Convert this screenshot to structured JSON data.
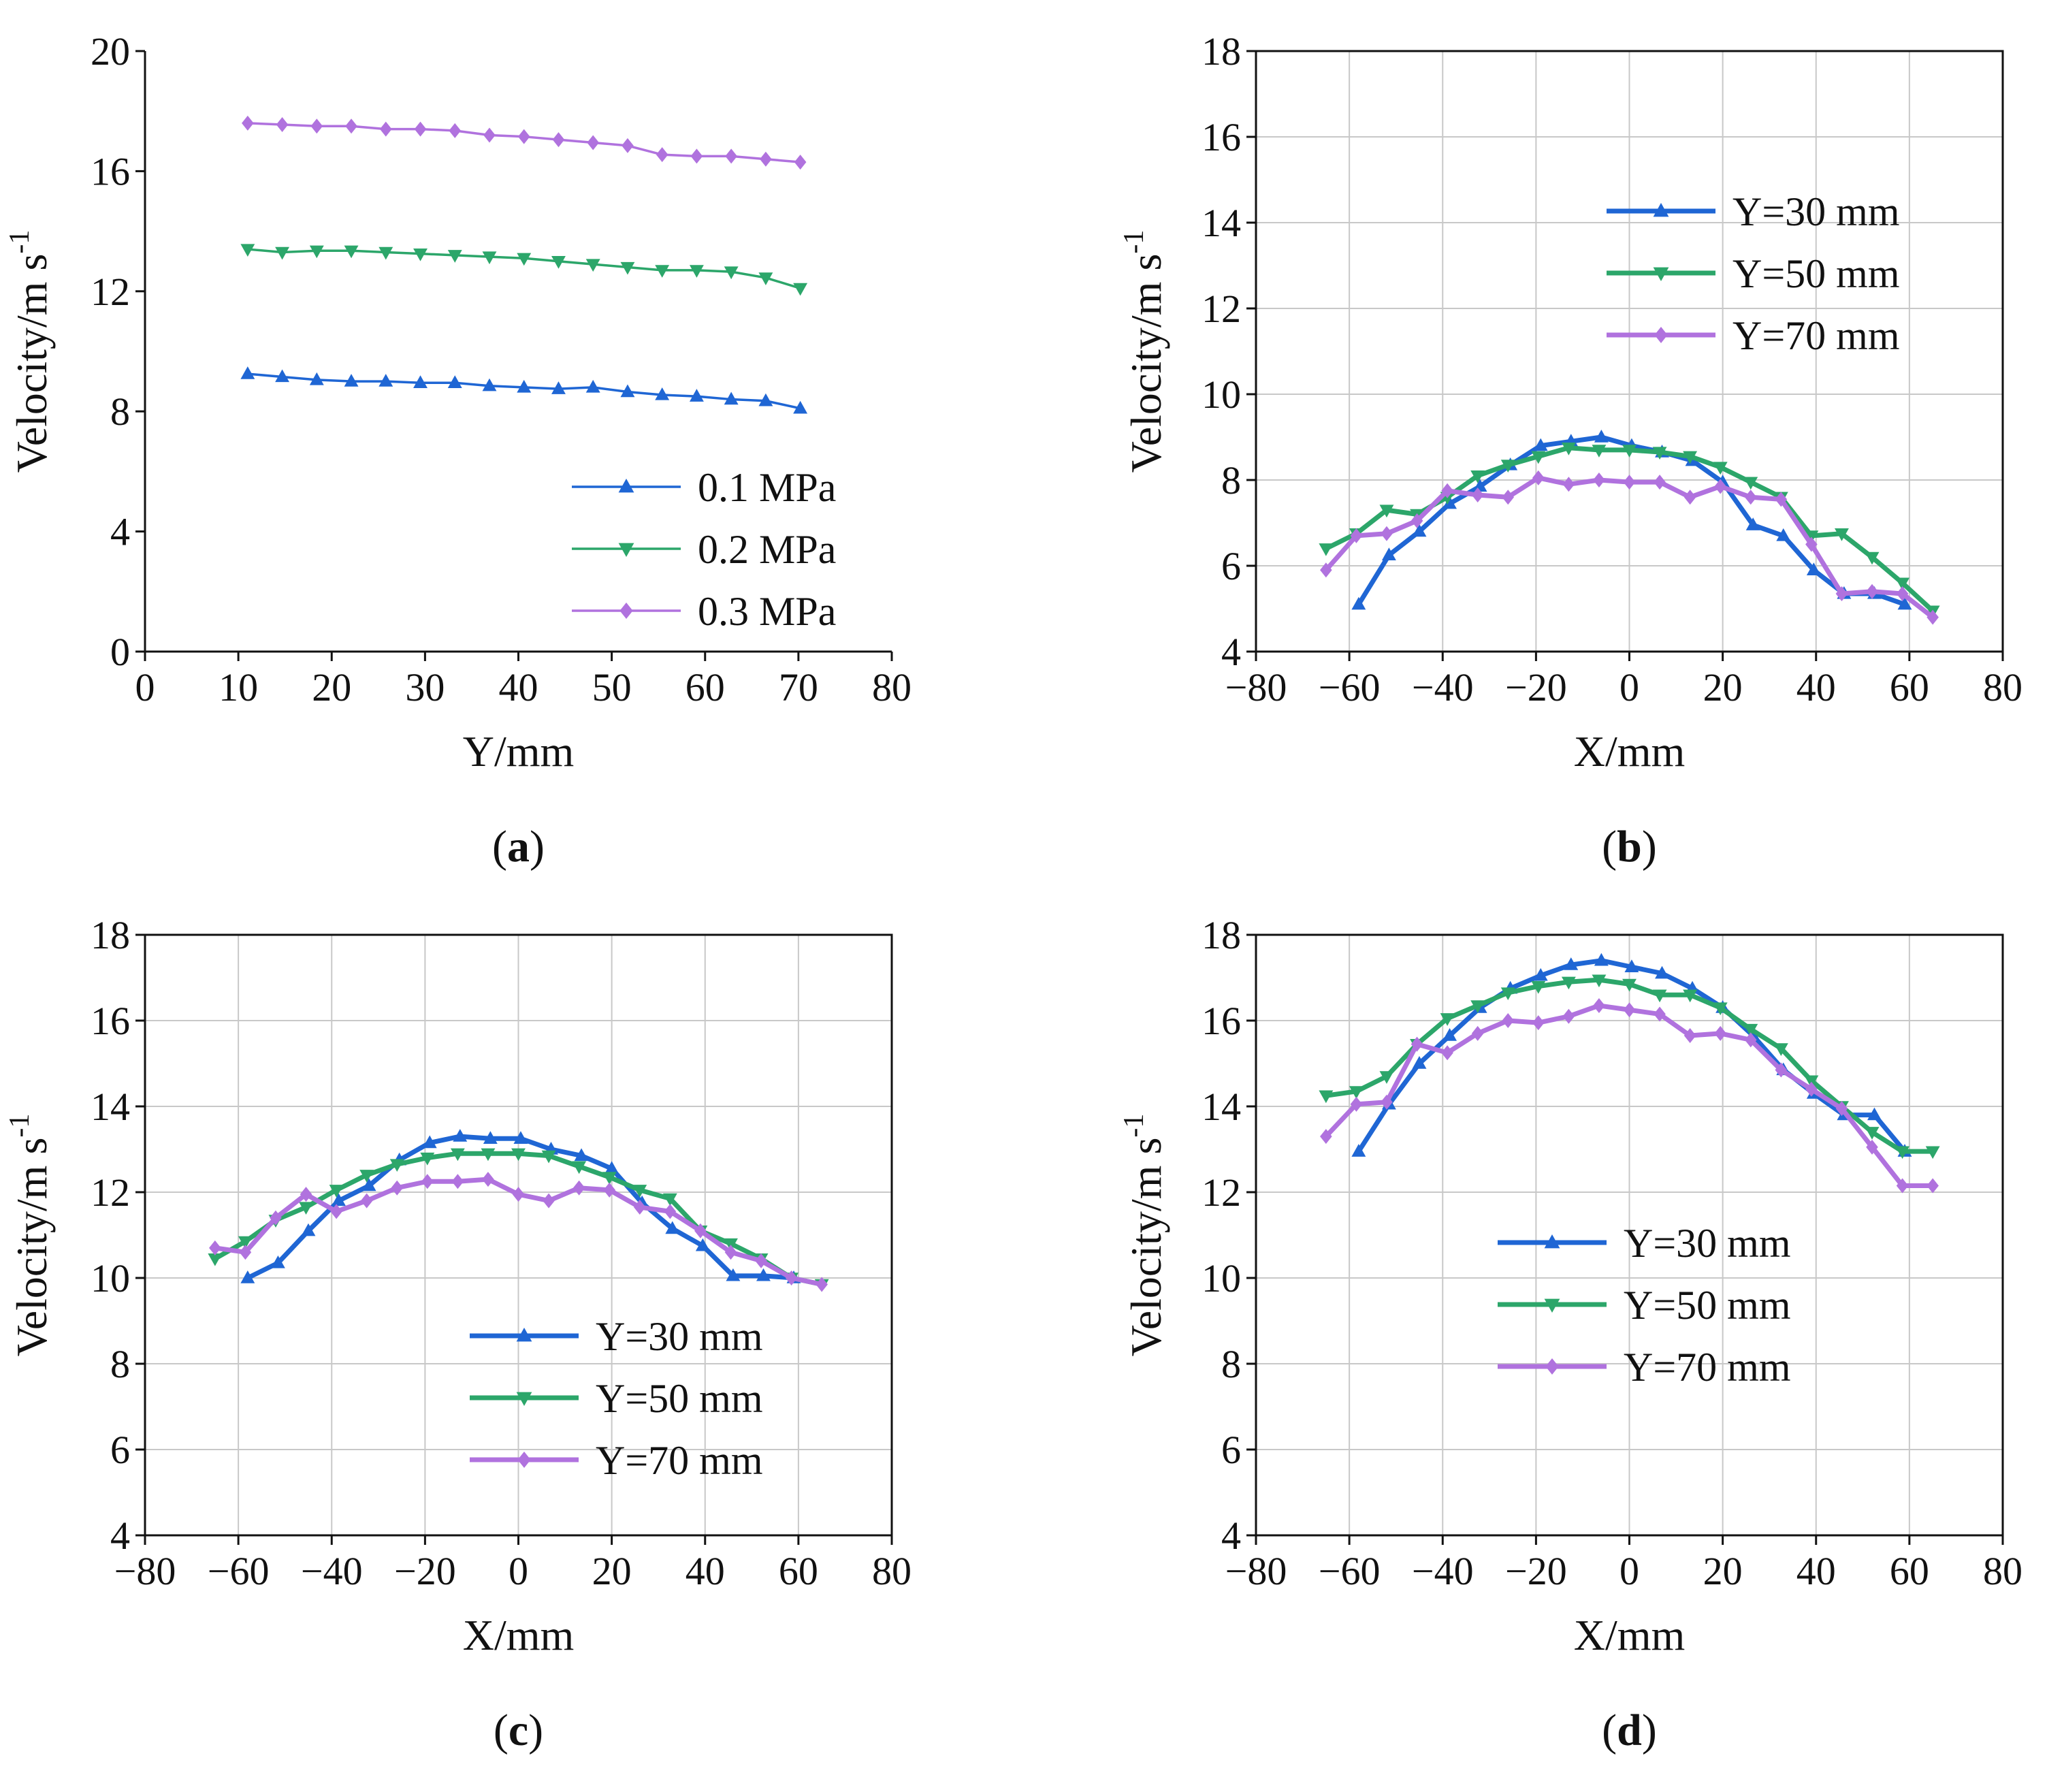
{
  "chart_data": [
    {
      "panel": "a",
      "type": "line",
      "xlabel": "Y/mm",
      "ylabel_main": "Velocity/m s",
      "ylabel_sup": "-1",
      "xlim": [
        0,
        80
      ],
      "ylim": [
        0,
        20
      ],
      "xticks": [
        0,
        10,
        20,
        30,
        40,
        50,
        60,
        70,
        80
      ],
      "yticks": [
        0,
        4,
        8,
        12,
        16,
        20
      ],
      "grid": false,
      "legend_position": "bottom-right",
      "x": [
        11,
        14.7,
        18.4,
        22.1,
        25.8,
        29.5,
        33.2,
        36.9,
        40.6,
        44.3,
        48,
        51.7,
        55.4,
        59.1,
        62.8,
        66.5,
        70.2
      ],
      "series": [
        {
          "name": "0.1 MPa",
          "marker": "triangle-up",
          "color": "#1f66d4",
          "values": [
            9.25,
            9.15,
            9.05,
            9.0,
            9.0,
            8.95,
            8.95,
            8.85,
            8.8,
            8.75,
            8.8,
            8.65,
            8.55,
            8.5,
            8.4,
            8.35,
            8.1
          ]
        },
        {
          "name": "0.2 MPa",
          "marker": "triangle-down",
          "color": "#2ca66a",
          "values": [
            13.4,
            13.3,
            13.35,
            13.35,
            13.3,
            13.25,
            13.2,
            13.15,
            13.1,
            13.0,
            12.9,
            12.8,
            12.7,
            12.7,
            12.65,
            12.45,
            12.1
          ]
        },
        {
          "name": "0.3 MPa",
          "marker": "diamond",
          "color": "#b072de",
          "values": [
            17.6,
            17.55,
            17.5,
            17.5,
            17.4,
            17.4,
            17.35,
            17.2,
            17.15,
            17.05,
            16.95,
            16.85,
            16.55,
            16.5,
            16.5,
            16.4,
            16.3
          ]
        }
      ],
      "panel_label_text": "a"
    },
    {
      "panel": "b",
      "type": "line",
      "xlabel": "X/mm",
      "ylabel_main": "Velocity/m s",
      "ylabel_sup": "-1",
      "xlim": [
        -80,
        80
      ],
      "ylim": [
        4,
        18
      ],
      "xticks": [
        -80,
        -60,
        -40,
        -20,
        0,
        20,
        40,
        60,
        80
      ],
      "xtick_labels": [
        "−80",
        "−60",
        "−40",
        "−20",
        "0",
        "20",
        "40",
        "60",
        "80"
      ],
      "yticks": [
        4,
        6,
        8,
        10,
        12,
        14,
        16,
        18
      ],
      "grid": true,
      "legend_position": "top-right",
      "series": [
        {
          "name": "Y=30 mm",
          "marker": "triangle-up",
          "color": "#1f66d4",
          "x": [
            -58,
            -51.5,
            -45,
            -38.5,
            -32,
            -25.5,
            -19,
            -12.5,
            -6,
            0.5,
            7,
            13.5,
            20,
            26.5,
            33,
            39.5,
            46,
            52.5,
            59
          ],
          "values": [
            5.1,
            6.25,
            6.8,
            7.45,
            7.85,
            8.35,
            8.8,
            8.9,
            9.0,
            8.8,
            8.65,
            8.45,
            7.95,
            6.95,
            6.7,
            5.9,
            5.35,
            5.35,
            5.1
          ]
        },
        {
          "name": "Y=50 mm",
          "marker": "triangle-down",
          "color": "#2ca66a",
          "x": [
            -65,
            -58.5,
            -52,
            -45.5,
            -39,
            -32.5,
            -26,
            -19.5,
            -13,
            -6.5,
            0,
            6.5,
            13,
            19.5,
            26,
            32.5,
            39,
            45.5,
            52,
            58.5,
            65
          ],
          "values": [
            6.4,
            6.75,
            7.3,
            7.2,
            7.6,
            8.1,
            8.35,
            8.55,
            8.75,
            8.7,
            8.7,
            8.65,
            8.55,
            8.3,
            7.95,
            7.6,
            6.7,
            6.75,
            6.2,
            5.6,
            4.95
          ]
        },
        {
          "name": "Y=70 mm",
          "marker": "diamond",
          "color": "#b072de",
          "x": [
            -65,
            -58.5,
            -52,
            -45.5,
            -39,
            -32.5,
            -26,
            -19.5,
            -13,
            -6.5,
            0,
            6.5,
            13,
            19.5,
            26,
            32.5,
            39,
            45.5,
            52,
            58.5,
            65
          ],
          "values": [
            5.9,
            6.7,
            6.75,
            7.05,
            7.75,
            7.65,
            7.6,
            8.05,
            7.9,
            8.0,
            7.95,
            7.95,
            7.6,
            7.85,
            7.6,
            7.55,
            6.5,
            5.35,
            5.4,
            5.35,
            4.8
          ]
        }
      ],
      "panel_label_text": "b"
    },
    {
      "panel": "c",
      "type": "line",
      "xlabel": "X/mm",
      "ylabel_main": "Velocity/m s",
      "ylabel_sup": "-1",
      "xlim": [
        -80,
        80
      ],
      "ylim": [
        4,
        18
      ],
      "xticks": [
        -80,
        -60,
        -40,
        -20,
        0,
        20,
        40,
        60,
        80
      ],
      "xtick_labels": [
        "−80",
        "−60",
        "−40",
        "−20",
        "0",
        "20",
        "40",
        "60",
        "80"
      ],
      "yticks": [
        4,
        6,
        8,
        10,
        12,
        14,
        16,
        18
      ],
      "grid": true,
      "legend_position": "bottom-right",
      "series": [
        {
          "name": "Y=30 mm",
          "marker": "triangle-up",
          "color": "#1f66d4",
          "x": [
            -58,
            -51.5,
            -45,
            -38.5,
            -32,
            -25.5,
            -19,
            -12.5,
            -6,
            0.5,
            7,
            13.5,
            20,
            26.5,
            33,
            39.5,
            46,
            52.5,
            59
          ],
          "values": [
            10.0,
            10.35,
            11.1,
            11.8,
            12.15,
            12.75,
            13.15,
            13.3,
            13.25,
            13.25,
            13.0,
            12.85,
            12.55,
            11.75,
            11.15,
            10.75,
            10.05,
            10.05,
            10.0
          ]
        },
        {
          "name": "Y=50 mm",
          "marker": "triangle-down",
          "color": "#2ca66a",
          "x": [
            -65,
            -58.5,
            -52,
            -45.5,
            -39,
            -32.5,
            -26,
            -19.5,
            -13,
            -6.5,
            0,
            6.5,
            13,
            19.5,
            26,
            32.5,
            39,
            45.5,
            52,
            58.5,
            65
          ],
          "values": [
            10.45,
            10.85,
            11.35,
            11.65,
            12.05,
            12.4,
            12.65,
            12.8,
            12.9,
            12.9,
            12.9,
            12.85,
            12.6,
            12.35,
            12.05,
            11.85,
            11.1,
            10.8,
            10.45,
            10.0,
            9.85
          ]
        },
        {
          "name": "Y=70 mm",
          "marker": "diamond",
          "color": "#b072de",
          "x": [
            -65,
            -58.5,
            -52,
            -45.5,
            -39,
            -32.5,
            -26,
            -19.5,
            -13,
            -6.5,
            0,
            6.5,
            13,
            19.5,
            26,
            32.5,
            39,
            45.5,
            52,
            58.5,
            65
          ],
          "values": [
            10.7,
            10.6,
            11.4,
            11.95,
            11.55,
            11.8,
            12.1,
            12.25,
            12.25,
            12.3,
            11.95,
            11.8,
            12.1,
            12.05,
            11.65,
            11.55,
            11.1,
            10.6,
            10.4,
            10.0,
            9.85
          ]
        }
      ],
      "panel_label_text": "c"
    },
    {
      "panel": "d",
      "type": "line",
      "xlabel": "X/mm",
      "ylabel_main": "Velocity/m s",
      "ylabel_sup": "-1",
      "xlim": [
        -80,
        80
      ],
      "ylim": [
        4,
        18
      ],
      "xticks": [
        -80,
        -60,
        -40,
        -20,
        0,
        20,
        40,
        60,
        80
      ],
      "xtick_labels": [
        "−80",
        "−60",
        "−40",
        "−20",
        "0",
        "20",
        "40",
        "60",
        "80"
      ],
      "yticks": [
        4,
        6,
        8,
        10,
        12,
        14,
        16,
        18
      ],
      "grid": true,
      "legend_position": "middle-right",
      "series": [
        {
          "name": "Y=30 mm",
          "marker": "triangle-up",
          "color": "#1f66d4",
          "x": [
            -58,
            -51.5,
            -45,
            -38.5,
            -32,
            -25.5,
            -19,
            -12.5,
            -6,
            0.5,
            7,
            13.5,
            20,
            26.5,
            33,
            39.5,
            46,
            52.5,
            59
          ],
          "values": [
            12.95,
            14.05,
            15.0,
            15.65,
            16.3,
            16.75,
            17.05,
            17.3,
            17.4,
            17.25,
            17.1,
            16.75,
            16.3,
            15.65,
            14.85,
            14.3,
            13.8,
            13.8,
            12.95
          ]
        },
        {
          "name": "Y=50 mm",
          "marker": "triangle-down",
          "color": "#2ca66a",
          "x": [
            -65,
            -58.5,
            -52,
            -45.5,
            -39,
            -32.5,
            -26,
            -19.5,
            -13,
            -6.5,
            0,
            6.5,
            13,
            19.5,
            26,
            32.5,
            39,
            45.5,
            52,
            58.5,
            65
          ],
          "values": [
            14.25,
            14.35,
            14.7,
            15.45,
            16.05,
            16.35,
            16.65,
            16.8,
            16.9,
            16.95,
            16.85,
            16.6,
            16.6,
            16.3,
            15.8,
            15.35,
            14.6,
            14.0,
            13.4,
            12.95,
            12.95
          ]
        },
        {
          "name": "Y=70 mm",
          "marker": "diamond",
          "color": "#b072de",
          "x": [
            -65,
            -58.5,
            -52,
            -45.5,
            -39,
            -32.5,
            -26,
            -19.5,
            -13,
            -6.5,
            0,
            6.5,
            13,
            19.5,
            26,
            32.5,
            39,
            45.5,
            52,
            58.5,
            65
          ],
          "values": [
            13.3,
            14.05,
            14.1,
            15.45,
            15.25,
            15.7,
            16.0,
            15.95,
            16.1,
            16.35,
            16.25,
            16.15,
            15.65,
            15.7,
            15.55,
            14.85,
            14.4,
            13.95,
            13.05,
            12.15,
            12.15
          ]
        }
      ],
      "panel_label_text": "d"
    }
  ]
}
